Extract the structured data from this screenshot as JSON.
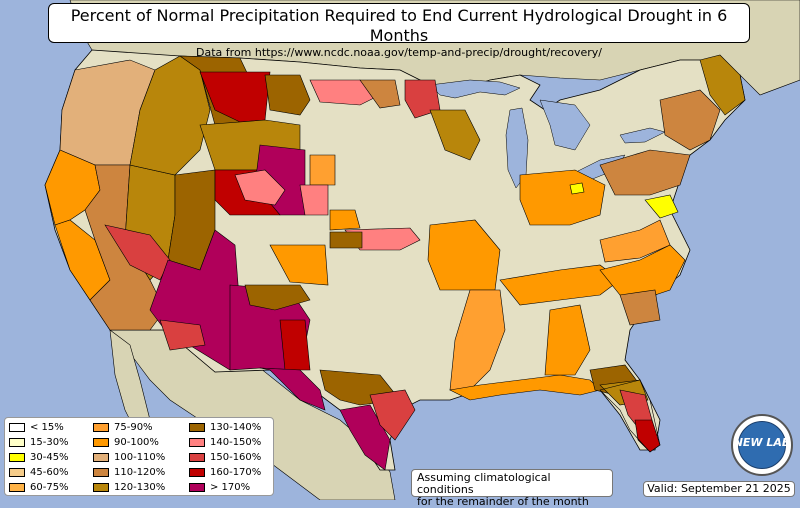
{
  "title": "Percent of Normal Precipitation Required to End Current Hydrological Drought in 6 Months",
  "subtitle": "Data from https://www.ncdc.noaa.gov/temp-and-precip/drought/recovery/",
  "note_line1": "Assuming climatological conditions",
  "note_line2": "for the remainder of the month",
  "valid": "Valid: September 21 2025",
  "logo_text": "NEW LAB",
  "colors": {
    "ocean": "#9db4dc",
    "land": "#e4e0c4",
    "lakes": "#9db4dc",
    "foreign_land": "#d8d4b4",
    "border": "#000000"
  },
  "legend": [
    {
      "label": "< 15%",
      "color": "#ffffff"
    },
    {
      "label": "15-30%",
      "color": "#ffffc8"
    },
    {
      "label": "30-45%",
      "color": "#ffff00"
    },
    {
      "label": "45-60%",
      "color": "#f5cc8a"
    },
    {
      "label": "60-75%",
      "color": "#ffb347"
    },
    {
      "label": "75-90%",
      "color": "#ffa030"
    },
    {
      "label": "90-100%",
      "color": "#ff9900"
    },
    {
      "label": "100-110%",
      "color": "#e2b07a"
    },
    {
      "label": "110-120%",
      "color": "#cd853f"
    },
    {
      "label": "120-130%",
      "color": "#b8860b"
    },
    {
      "label": "130-140%",
      "color": "#9c6400"
    },
    {
      "label": "140-150%",
      "color": "#ff8080"
    },
    {
      "label": "150-160%",
      "color": "#d94040"
    },
    {
      "label": "160-170%",
      "color": "#c00000"
    },
    {
      "label": "> 170%",
      "color": "#b0005a"
    }
  ],
  "regions": [
    {
      "name": "west-coast-oregon",
      "category": "100-110%"
    },
    {
      "name": "california-north",
      "category": "90-100%"
    },
    {
      "name": "california-central",
      "category": "90-100%"
    },
    {
      "name": "california-south",
      "category": "110-120%"
    },
    {
      "name": "nevada",
      "category": "120-130%"
    },
    {
      "name": "utah",
      "category": "130-140%"
    },
    {
      "name": "arizona-west",
      "category": "150-160%"
    },
    {
      "name": "arizona-east",
      "category": "> 170%"
    },
    {
      "name": "new-mexico",
      "category": "> 170%"
    },
    {
      "name": "texas-west",
      "category": "> 170%"
    },
    {
      "name": "texas-central",
      "category": "130-140%"
    },
    {
      "name": "texas-south",
      "category": "> 170%"
    },
    {
      "name": "texas-coast",
      "category": "150-160%"
    },
    {
      "name": "colorado-west",
      "category": "160-170%"
    },
    {
      "name": "colorado-east",
      "category": "> 170%"
    },
    {
      "name": "wyoming",
      "category": "120-130%"
    },
    {
      "name": "montana-east",
      "category": "160-170%"
    },
    {
      "name": "montana-west",
      "category": "130-140%"
    },
    {
      "name": "idaho",
      "category": "120-130%"
    },
    {
      "name": "south-dakota",
      "category": "140-150%"
    },
    {
      "name": "great-plains",
      "category": "30-45%"
    },
    {
      "name": "oklahoma-kansas",
      "category": "15-30%"
    },
    {
      "name": "missouri-arkansas",
      "category": "90-100%"
    },
    {
      "name": "mississippi-valley",
      "category": "75-90%"
    },
    {
      "name": "tennessee-kentucky",
      "category": "90-100%"
    },
    {
      "name": "gulf-coast",
      "category": "90-100%"
    },
    {
      "name": "florida-north",
      "category": "120-130%"
    },
    {
      "name": "florida-south",
      "category": "160-170%"
    },
    {
      "name": "florida-middle",
      "category": "150-160%"
    },
    {
      "name": "carolinas",
      "category": "90-100%"
    },
    {
      "name": "virginia",
      "category": "75-90%"
    },
    {
      "name": "ohio-valley",
      "category": "90-100%"
    },
    {
      "name": "northeast",
      "category": "110-120%"
    },
    {
      "name": "new-england",
      "category": "110-120%"
    },
    {
      "name": "maine",
      "category": "120-130%"
    },
    {
      "name": "maryland",
      "category": "30-45%"
    },
    {
      "name": "wisconsin-michigan",
      "category": "120-130%"
    },
    {
      "name": "minnesota-north",
      "category": "150-160%"
    },
    {
      "name": "nebraska-kansas-strip",
      "category": "140-150%"
    },
    {
      "name": "iowa-illinois",
      "category": "90-100%"
    }
  ]
}
